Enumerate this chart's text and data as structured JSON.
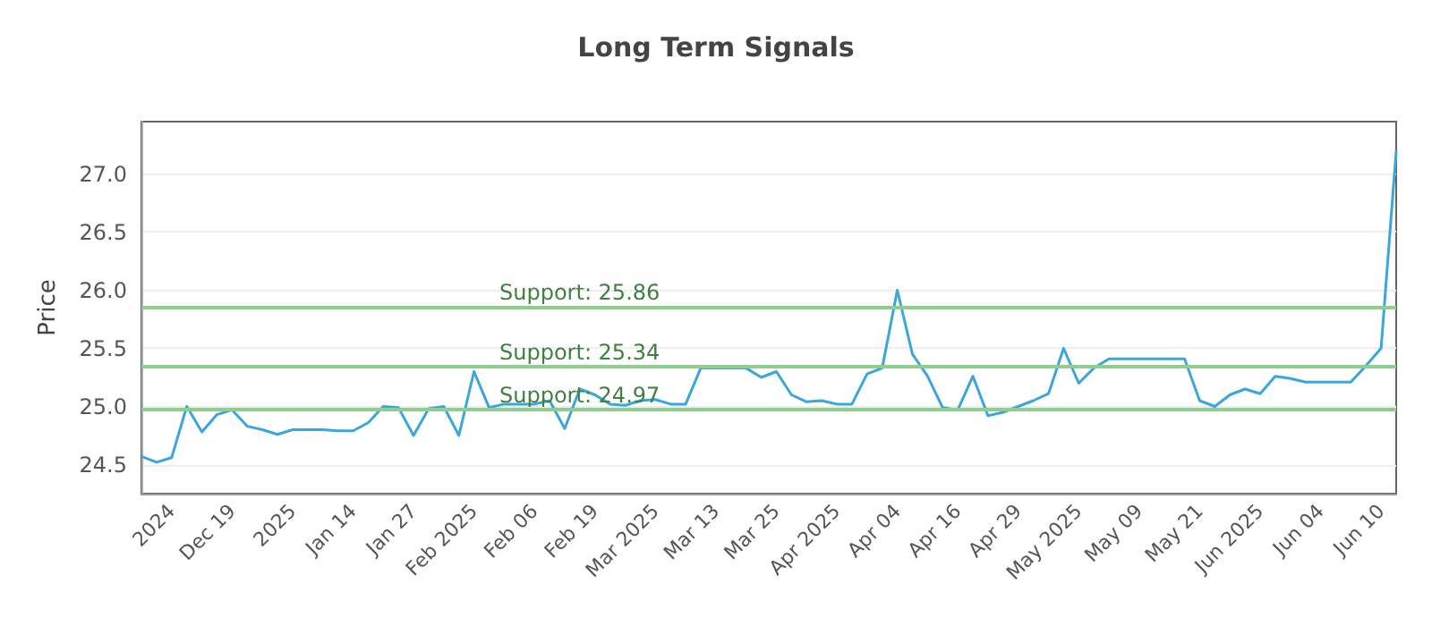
{
  "chart_data": {
    "type": "line",
    "title": "Long Term Signals",
    "ylabel": "Price",
    "categories": [
      null,
      null,
      "2024",
      null,
      null,
      null,
      "Dec 19",
      null,
      null,
      null,
      "2025",
      null,
      null,
      null,
      "Jan 14",
      null,
      null,
      null,
      "Jan 27",
      null,
      null,
      null,
      "Feb 2025",
      null,
      null,
      null,
      "Feb 06",
      null,
      null,
      null,
      "Feb 19",
      null,
      null,
      null,
      "Mar 2025",
      null,
      null,
      null,
      "Mar 13",
      null,
      null,
      null,
      "Mar 25",
      null,
      null,
      null,
      "Apr 2025",
      null,
      null,
      null,
      "Apr 04",
      null,
      null,
      null,
      "Apr 16",
      null,
      null,
      null,
      "Apr 29",
      null,
      null,
      null,
      "May 2025",
      null,
      null,
      null,
      "May 09",
      null,
      null,
      null,
      "May 21",
      null,
      null,
      null,
      "Jun 2025",
      null,
      null,
      null,
      "Jun 04",
      null,
      null,
      null,
      "Jun 10",
      null
    ],
    "series": [
      {
        "color": "#3aa6dd",
        "values": [
          24.57,
          24.52,
          24.56,
          25.0,
          24.78,
          24.93,
          24.97,
          24.83,
          24.8,
          24.76,
          24.8,
          24.8,
          24.8,
          24.79,
          24.79,
          24.86,
          25.0,
          24.99,
          24.75,
          24.98,
          25.0,
          24.75,
          25.3,
          24.99,
          25.02,
          25.02,
          25.02,
          25.05,
          24.81,
          25.15,
          25.1,
          25.02,
          25.01,
          25.05,
          25.06,
          25.02,
          25.02,
          25.33,
          25.33,
          25.33,
          25.33,
          25.25,
          25.3,
          25.1,
          25.04,
          25.05,
          25.02,
          25.02,
          25.28,
          25.33,
          26.0,
          25.45,
          25.26,
          24.99,
          24.97,
          25.26,
          24.92,
          24.95,
          25.0,
          25.05,
          25.11,
          25.5,
          25.2,
          25.33,
          25.41,
          25.41,
          25.41,
          25.41,
          25.41,
          25.41,
          25.05,
          25.0,
          25.1,
          25.15,
          25.11,
          25.26,
          25.24,
          25.21,
          25.21,
          25.21,
          25.21,
          25.35,
          25.5,
          27.2
        ]
      }
    ],
    "ylim": [
      24.25,
      27.45
    ],
    "yticks": [
      24.5,
      {
        "value": 25,
        "label": "25.0"
      },
      25.5,
      {
        "value": 26,
        "label": "26.0"
      },
      26.5,
      {
        "value": 27,
        "label": "27.0"
      }
    ],
    "ref_lines": [
      {
        "axis": "y",
        "value": 25.86,
        "label": "Support: 25.86",
        "color": "#8fce8f"
      },
      {
        "axis": "y",
        "value": 25.34,
        "label": "Support: 25.34",
        "color": "#8fce8f"
      },
      {
        "axis": "y",
        "value": 24.97,
        "label": "Support: 24.97",
        "color": "#8fce8f"
      }
    ],
    "grid": "y",
    "marker": "none",
    "line_style": "solid"
  }
}
